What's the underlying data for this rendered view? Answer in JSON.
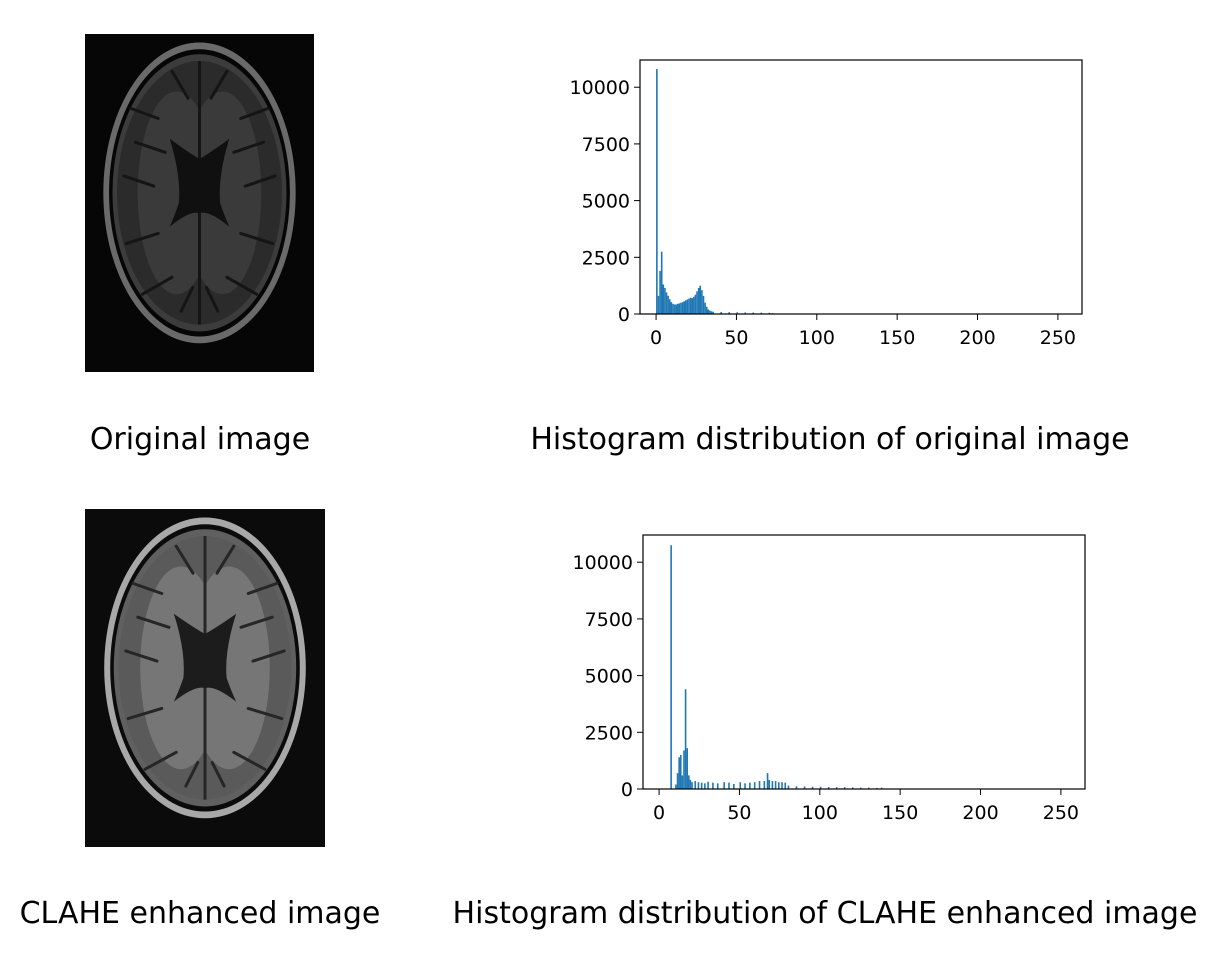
{
  "captions": {
    "original_image": "Original image",
    "original_hist": "Histogram distribution of original image",
    "clahe_image": "CLAHE enhanced image",
    "clahe_hist": "Histogram distribution of CLAHE enhanced image"
  },
  "mri_style": {
    "original": {
      "background": "#060606",
      "cortex": "#2b2b2b",
      "white_matter": "#3a3a3a",
      "skull": "#6a6a6a",
      "ventricle": "#101010",
      "sulci": "#151515"
    },
    "clahe": {
      "background": "#0b0b0b",
      "cortex": "#5a5a5a",
      "white_matter": "#767676",
      "skull": "#a8a8a8",
      "ventricle": "#1c1c1c",
      "sulci": "#262626"
    }
  },
  "colors": {
    "bar": "#1f77b4",
    "axis": "#000000"
  },
  "chart_data": [
    {
      "type": "bar",
      "title": "",
      "xlabel": "",
      "ylabel": "",
      "xlim": [
        -10,
        265
      ],
      "ylim": [
        0,
        11200
      ],
      "xticks": [
        0,
        50,
        100,
        150,
        200,
        250
      ],
      "yticks": [
        0,
        2500,
        5000,
        7500,
        10000
      ],
      "xtick_labels": [
        "0",
        "50",
        "100",
        "150",
        "200",
        "250"
      ],
      "ytick_labels": [
        "0",
        "2500",
        "5000",
        "7500",
        "10000"
      ],
      "grid": false,
      "bin_width": 1,
      "x": [
        0,
        1,
        2,
        3,
        4,
        5,
        6,
        7,
        8,
        9,
        10,
        11,
        12,
        13,
        14,
        15,
        16,
        17,
        18,
        19,
        20,
        21,
        22,
        23,
        24,
        25,
        26,
        27,
        28,
        29,
        30,
        31,
        32,
        33,
        34,
        35,
        40,
        45,
        50,
        55,
        60,
        65,
        70,
        72
      ],
      "values": [
        10800,
        800,
        1900,
        2750,
        1300,
        1150,
        950,
        800,
        650,
        520,
        450,
        420,
        420,
        450,
        470,
        500,
        520,
        560,
        600,
        640,
        680,
        720,
        700,
        760,
        850,
        1000,
        1150,
        1250,
        1050,
        800,
        500,
        320,
        200,
        150,
        120,
        100,
        90,
        80,
        75,
        70,
        65,
        60,
        55,
        40
      ]
    },
    {
      "type": "bar",
      "title": "",
      "xlabel": "",
      "ylabel": "",
      "xlim": [
        -10,
        265
      ],
      "ylim": [
        0,
        11200
      ],
      "xticks": [
        0,
        50,
        100,
        150,
        200,
        250
      ],
      "yticks": [
        0,
        2500,
        5000,
        7500,
        10000
      ],
      "xtick_labels": [
        "0",
        "50",
        "100",
        "150",
        "200",
        "250"
      ],
      "ytick_labels": [
        "0",
        "2500",
        "5000",
        "7500",
        "10000"
      ],
      "grid": false,
      "bin_width": 1,
      "x": [
        7,
        10,
        11,
        12,
        13,
        14,
        15,
        16,
        17,
        18,
        19,
        20,
        22,
        24,
        26,
        28,
        30,
        33,
        36,
        40,
        43,
        46,
        50,
        53,
        56,
        59,
        62,
        65,
        67,
        68,
        70,
        72,
        74,
        76,
        78,
        80,
        85,
        90,
        95,
        100,
        105,
        110,
        115,
        120,
        125,
        130,
        135,
        138
      ],
      "values": [
        10750,
        200,
        700,
        1400,
        1500,
        600,
        1700,
        4400,
        1800,
        600,
        400,
        300,
        350,
        300,
        280,
        250,
        320,
        280,
        250,
        300,
        280,
        220,
        300,
        250,
        280,
        300,
        350,
        350,
        700,
        400,
        350,
        350,
        300,
        300,
        280,
        150,
        120,
        110,
        100,
        100,
        90,
        80,
        80,
        70,
        60,
        60,
        50,
        60
      ]
    }
  ]
}
